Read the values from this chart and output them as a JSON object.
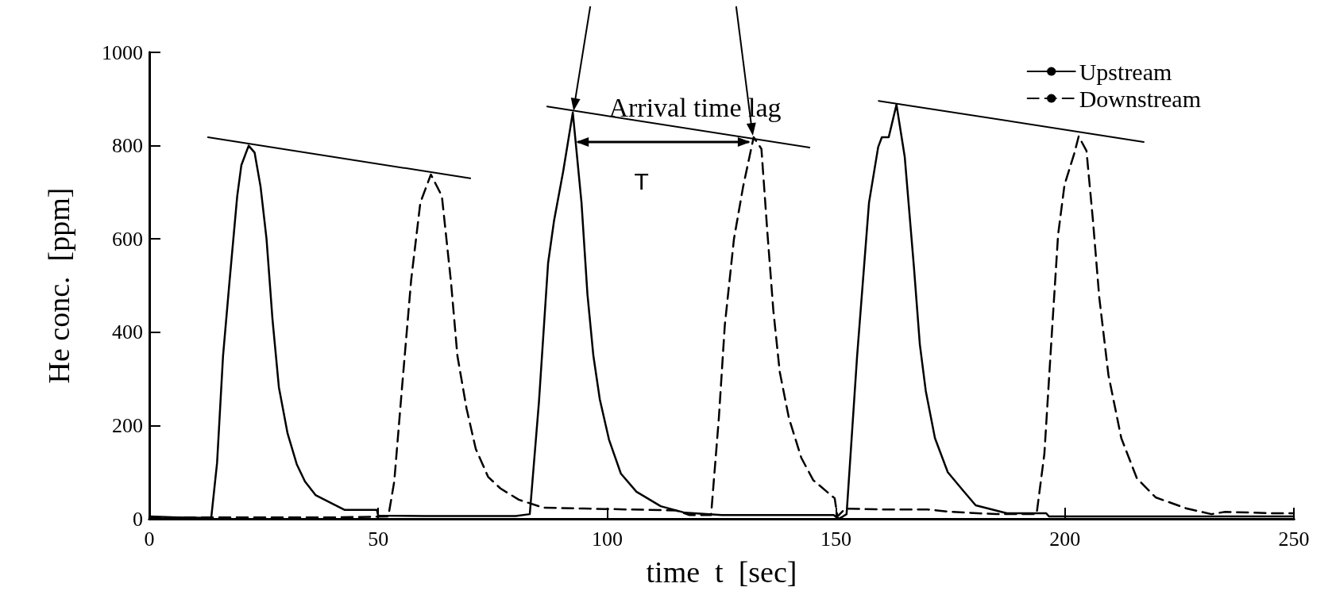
{
  "chart_data": {
    "type": "line",
    "xlabel": "time  t  [sec]",
    "ylabel": "He conc.  [ppm]",
    "xlim": [
      0,
      250
    ],
    "xticks": [
      0,
      50,
      100,
      150,
      200,
      250
    ],
    "ylim": [
      0,
      1000
    ],
    "yticks": [
      0,
      200,
      400,
      600,
      800,
      1000
    ],
    "grid": false,
    "legend": "top right",
    "marker": "none",
    "series": [
      {
        "name": "Upstream",
        "color": "#000000",
        "line_style": "solid",
        "x": [
          0,
          6,
          12,
          13.5,
          14.8,
          16.1,
          17.5,
          19.2,
          20.1,
          21.7,
          23,
          24.3,
          25.6,
          26.9,
          28.3,
          30.2,
          32.2,
          34,
          36.3,
          40.3,
          42.7,
          49.7,
          50,
          60,
          70,
          80,
          83.1,
          85.1,
          87.1,
          88.4,
          90.4,
          92.5,
          94.4,
          95.7,
          97,
          98.4,
          100.4,
          103,
          106.4,
          111.7,
          117,
          125,
          135,
          145,
          149.5,
          150.5,
          151.5,
          152.3,
          154.6,
          157.2,
          159.2,
          160,
          161.5,
          163.2,
          165,
          167,
          168.3,
          169.6,
          171.6,
          174.4,
          177.8,
          180.5,
          187.3,
          195.9,
          196.5,
          210,
          220,
          230,
          240,
          250
        ],
        "values": [
          5,
          3,
          2,
          0,
          120,
          349,
          507,
          692,
          758,
          800,
          785,
          712,
          600,
          428,
          282,
          183,
          117,
          80,
          51,
          31,
          19,
          19,
          7,
          6,
          6,
          6,
          10,
          250,
          548,
          639,
          745,
          871,
          678,
          481,
          349,
          256,
          170,
          97,
          58,
          27,
          13,
          8,
          8,
          8,
          8,
          0,
          5,
          10,
          349,
          678,
          797,
          818,
          818,
          888,
          776,
          541,
          374,
          274,
          173,
          100,
          60,
          29,
          12,
          12,
          5,
          5,
          5,
          5,
          5,
          5
        ]
      },
      {
        "name": "Downstream",
        "color": "#000000",
        "line_style": "dashed",
        "x": [
          0,
          20,
          40,
          52.2,
          53.5,
          55.2,
          57.2,
          59.2,
          61.5,
          63.9,
          65.9,
          67.3,
          69.3,
          71.3,
          74,
          76.7,
          80.7,
          86,
          95,
          105,
          115,
          118,
          122.7,
          124.4,
          125.7,
          127.7,
          129.7,
          132,
          133.7,
          135,
          136.3,
          137.7,
          139.7,
          142.4,
          145,
          149.7,
          150.3,
          152,
          160,
          170,
          175,
          185,
          193.8,
          195.5,
          197.2,
          198.5,
          199.9,
          202,
          203,
          204.7,
          206.1,
          207.5,
          209.5,
          212.3,
          215.7,
          219.8,
          226.6,
          232,
          235,
          245,
          250
        ],
        "values": [
          3,
          3,
          3,
          5,
          80,
          282,
          513,
          678,
          738,
          692,
          507,
          349,
          236,
          150,
          90,
          65,
          41,
          24,
          22,
          20,
          18,
          8,
          8,
          216,
          415,
          600,
          712,
          818,
          793,
          614,
          447,
          315,
          216,
          131,
          83,
          44,
          5,
          22,
          20,
          20,
          15,
          10,
          10,
          139,
          408,
          609,
          716,
          782,
          820,
          789,
          641,
          474,
          308,
          173,
          87,
          46,
          22,
          10,
          15,
          12,
          12
        ]
      },
      {
        "color": "#000000",
        "line_style": "solid",
        "x": [
          12.8,
          70.1
        ],
        "values": [
          818,
          730
        ]
      },
      {
        "color": "#000000",
        "line_style": "solid",
        "x": [
          86.9,
          144.2
        ],
        "values": [
          884,
          796
        ]
      },
      {
        "color": "#000000",
        "line_style": "solid",
        "x": [
          159.3,
          217.2
        ],
        "values": [
          896,
          808
        ]
      }
    ],
    "annotations": [
      "Arrival time lag",
      "T"
    ]
  }
}
